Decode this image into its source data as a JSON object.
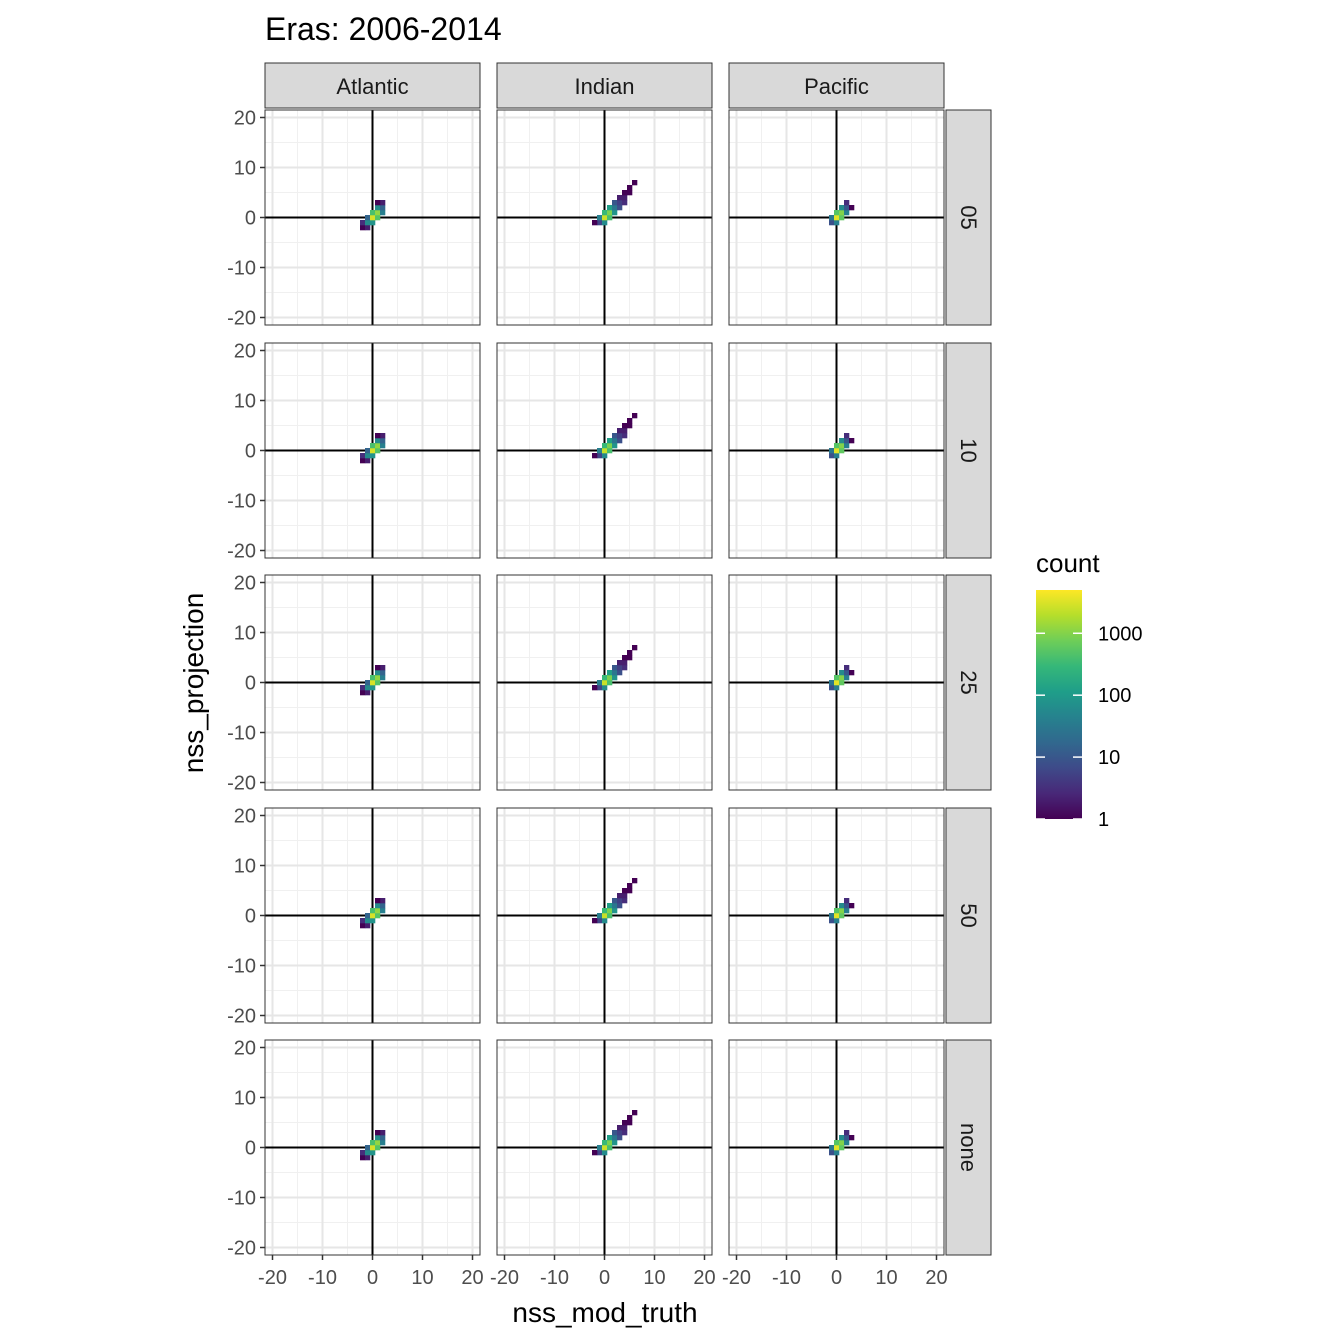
{
  "chart_data": {
    "type": "heatmap",
    "title": "Eras: 2006-2014",
    "xlabel": "nss_mod_truth",
    "ylabel": "nss_projection",
    "xlim": [
      -21.5,
      21.5
    ],
    "ylim": [
      -21.5,
      21.5
    ],
    "x_ticks": [
      -20,
      -10,
      0,
      10,
      20
    ],
    "x_tick_labels": [
      "-20",
      "-10",
      "0",
      "10",
      "20"
    ],
    "y_ticks": [
      -20,
      -10,
      0,
      10,
      20
    ],
    "y_tick_labels": [
      "-20",
      "-10",
      "0",
      "10",
      "20"
    ],
    "columns": [
      "Atlantic",
      "Indian",
      "Pacific"
    ],
    "rows": [
      "05",
      "10",
      "25",
      "50",
      "none"
    ],
    "grid": true,
    "reference_lines": {
      "x": 0,
      "y": 0
    },
    "bin_width": 1,
    "legend": {
      "title": "count",
      "scale": "log10",
      "position": "right",
      "min": 1,
      "max": 5000,
      "breaks": [
        1,
        10,
        100,
        1000
      ],
      "break_labels": [
        "1",
        "10",
        "100",
        "1000"
      ],
      "colors": [
        "#440154",
        "#482878",
        "#3e4a89",
        "#31688e",
        "#26828e",
        "#1f9e89",
        "#35b779",
        "#6ece58",
        "#b5de2b",
        "#fde725"
      ]
    },
    "bins_by_basin": {
      "Atlantic": [
        [
          -2,
          -2,
          1
        ],
        [
          -2,
          -1,
          3
        ],
        [
          -1,
          -2,
          2
        ],
        [
          -1,
          -1,
          60
        ],
        [
          -1,
          0,
          15
        ],
        [
          0,
          -1,
          80
        ],
        [
          0,
          0,
          3000
        ],
        [
          0,
          1,
          400
        ],
        [
          1,
          0,
          500
        ],
        [
          1,
          1,
          1200
        ],
        [
          1,
          2,
          60
        ],
        [
          2,
          1,
          40
        ],
        [
          2,
          2,
          15
        ],
        [
          2,
          3,
          2
        ],
        [
          1,
          3,
          1
        ]
      ],
      "Indian": [
        [
          -1,
          -1,
          6
        ],
        [
          -2,
          -1,
          1
        ],
        [
          -1,
          0,
          40
        ],
        [
          0,
          -1,
          60
        ],
        [
          0,
          0,
          2500
        ],
        [
          0,
          1,
          300
        ],
        [
          1,
          0,
          400
        ],
        [
          1,
          1,
          900
        ],
        [
          1,
          2,
          120
        ],
        [
          2,
          1,
          80
        ],
        [
          2,
          2,
          30
        ],
        [
          2,
          3,
          10
        ],
        [
          3,
          2,
          8
        ],
        [
          3,
          3,
          5
        ],
        [
          3,
          4,
          2
        ],
        [
          4,
          3,
          3
        ],
        [
          4,
          4,
          2
        ],
        [
          4,
          5,
          1
        ],
        [
          5,
          5,
          1
        ],
        [
          5,
          6,
          1
        ],
        [
          6,
          7,
          1
        ]
      ],
      "Pacific": [
        [
          -1,
          -1,
          8
        ],
        [
          -1,
          0,
          30
        ],
        [
          0,
          -1,
          40
        ],
        [
          0,
          0,
          3500
        ],
        [
          0,
          1,
          500
        ],
        [
          1,
          0,
          600
        ],
        [
          1,
          1,
          1000
        ],
        [
          1,
          2,
          60
        ],
        [
          2,
          1,
          40
        ],
        [
          2,
          2,
          10
        ],
        [
          2,
          3,
          3
        ],
        [
          3,
          2,
          1
        ]
      ]
    }
  }
}
